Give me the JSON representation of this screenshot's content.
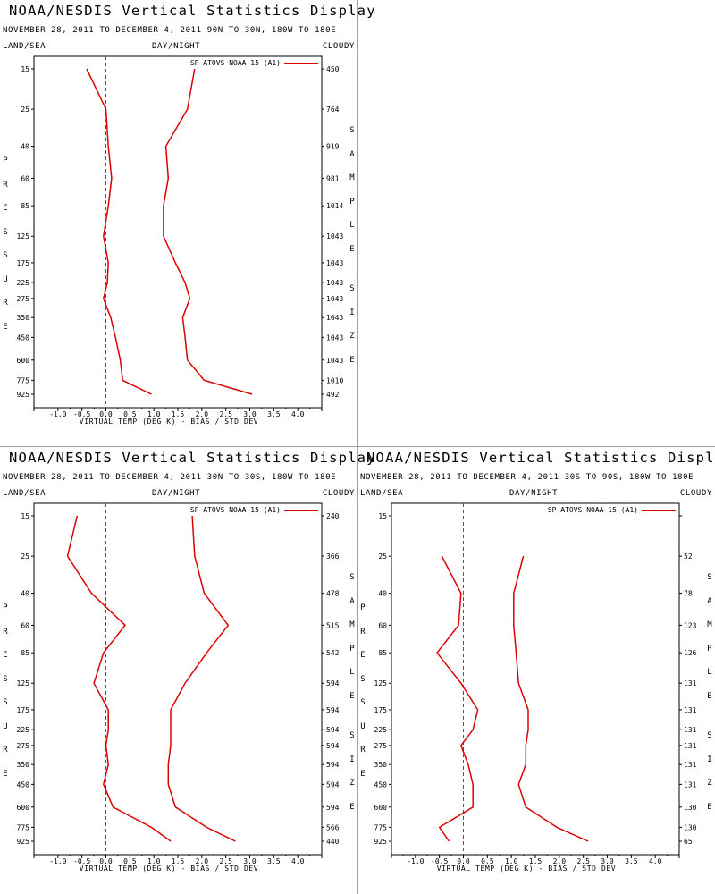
{
  "chart_data": [
    {
      "type": "line",
      "title": "NOAA/NESDIS Vertical Statistics Display",
      "subtitle": "NOVEMBER 28, 2011 TO DECEMBER 4, 2011 90N TO 30N, 180W TO 180E",
      "header_left": "LAND/SEA",
      "header_center": "DAY/NIGHT",
      "header_right": "CLOUDY",
      "ylabel": "PRESSURE",
      "y2label": "SAMPLE SIZE",
      "xlabel": "VIRTUAL TEMP (DEG K) - BIAS / STD DEV",
      "xlim": [
        -1.5,
        4.5
      ],
      "xticks": [
        "-1.0",
        "-0.5",
        "0.0",
        "0.5",
        "1.0",
        "1.5",
        "2.0",
        "2.5",
        "3.0",
        "3.5",
        "4.0"
      ],
      "y_scale": "log",
      "y_reversed": true,
      "levels": [
        15,
        25,
        40,
        60,
        85,
        125,
        175,
        225,
        275,
        350,
        450,
        600,
        775,
        925
      ],
      "sample_size": [
        450,
        764,
        919,
        981,
        1014,
        1043,
        1043,
        1043,
        1043,
        1043,
        1043,
        1043,
        1010,
        492
      ],
      "legend": "SP ATOVS NOAA-15 (A1)",
      "legend_position": "top-right",
      "series": [
        {
          "role": "bias",
          "values": [
            -0.4,
            0.0,
            0.05,
            0.12,
            0.05,
            -0.05,
            0.05,
            0.03,
            -0.05,
            0.1,
            0.2,
            0.3,
            0.35,
            0.95
          ]
        },
        {
          "role": "std_dev",
          "values": [
            1.85,
            1.7,
            1.25,
            1.3,
            1.2,
            1.2,
            1.45,
            1.65,
            1.75,
            1.6,
            1.65,
            1.7,
            2.05,
            3.05
          ]
        }
      ],
      "colors": {
        "series": "#dd0000",
        "zero_line": "#555555"
      }
    },
    {
      "type": "line",
      "title": "NOAA/NESDIS Vertical Statistics Display",
      "subtitle": "NOVEMBER 28, 2011 TO DECEMBER 4, 2011 30N TO 30S, 180W TO 180E",
      "header_left": "LAND/SEA",
      "header_center": "DAY/NIGHT",
      "header_right": "CLOUDY",
      "ylabel": "PRESSURE",
      "y2label": "SAMPLE SIZE",
      "xlabel": "VIRTUAL TEMP (DEG K) - BIAS / STD DEV",
      "xlim": [
        -1.5,
        4.5
      ],
      "xticks": [
        "-1.0",
        "-0.5",
        "0.0",
        "0.5",
        "1.0",
        "1.5",
        "2.0",
        "2.5",
        "3.0",
        "3.5",
        "4.0"
      ],
      "y_scale": "log",
      "y_reversed": true,
      "levels": [
        15,
        25,
        40,
        60,
        85,
        125,
        175,
        225,
        275,
        350,
        450,
        600,
        775,
        925
      ],
      "sample_size": [
        240,
        366,
        478,
        515,
        542,
        594,
        594,
        594,
        594,
        594,
        594,
        594,
        566,
        440
      ],
      "legend": "SP ATOVS NOAA-15 (A1)",
      "legend_position": "top-right",
      "series": [
        {
          "role": "bias",
          "values": [
            -0.6,
            -0.8,
            -0.3,
            0.4,
            -0.05,
            -0.25,
            0.05,
            0.05,
            0.0,
            0.05,
            -0.05,
            0.15,
            0.95,
            1.35
          ]
        },
        {
          "role": "std_dev",
          "values": [
            1.8,
            1.85,
            2.05,
            2.55,
            2.1,
            1.65,
            1.35,
            1.35,
            1.35,
            1.3,
            1.3,
            1.45,
            2.1,
            2.7
          ]
        }
      ],
      "colors": {
        "series": "#dd0000",
        "zero_line": "#555555"
      }
    },
    {
      "type": "line",
      "title": "NOAA/NESDIS Vertical Statistics Display",
      "subtitle": "NOVEMBER 28, 2011 TO DECEMBER 4, 2011 30S TO 90S, 180W TO 180E",
      "header_left": "LAND/SEA",
      "header_center": "DAY/NIGHT",
      "header_right": "CLOUDY",
      "ylabel": "PRESSURE",
      "y2label": "SAMPLE SIZE",
      "xlabel": "VIRTUAL TEMP (DEG K) - BIAS / STD DEV",
      "xlim": [
        -1.5,
        4.5
      ],
      "xticks": [
        "-1.0",
        "-0.5",
        "0.0",
        "0.5",
        "1.0",
        "1.5",
        "2.0",
        "2.5",
        "3.0",
        "3.5",
        "4.0"
      ],
      "y_scale": "log",
      "y_reversed": true,
      "levels": [
        15,
        25,
        40,
        60,
        85,
        125,
        175,
        225,
        275,
        350,
        450,
        600,
        775,
        925
      ],
      "sample_size": [
        "",
        52,
        78,
        123,
        126,
        131,
        131,
        131,
        131,
        131,
        131,
        130,
        130,
        65
      ],
      "legend": "SP ATOVS NOAA-15 (A1)",
      "legend_position": "top-right",
      "series": [
        {
          "role": "bias",
          "values": [
            null,
            -0.45,
            -0.05,
            -0.1,
            -0.55,
            -0.05,
            0.3,
            0.2,
            -0.05,
            0.1,
            0.2,
            0.2,
            -0.5,
            -0.3
          ]
        },
        {
          "role": "std_dev",
          "values": [
            null,
            1.25,
            1.05,
            1.05,
            1.1,
            1.15,
            1.35,
            1.35,
            1.3,
            1.3,
            1.15,
            1.3,
            1.95,
            2.6
          ]
        }
      ],
      "colors": {
        "series": "#dd0000",
        "zero_line": "#555555"
      }
    }
  ]
}
